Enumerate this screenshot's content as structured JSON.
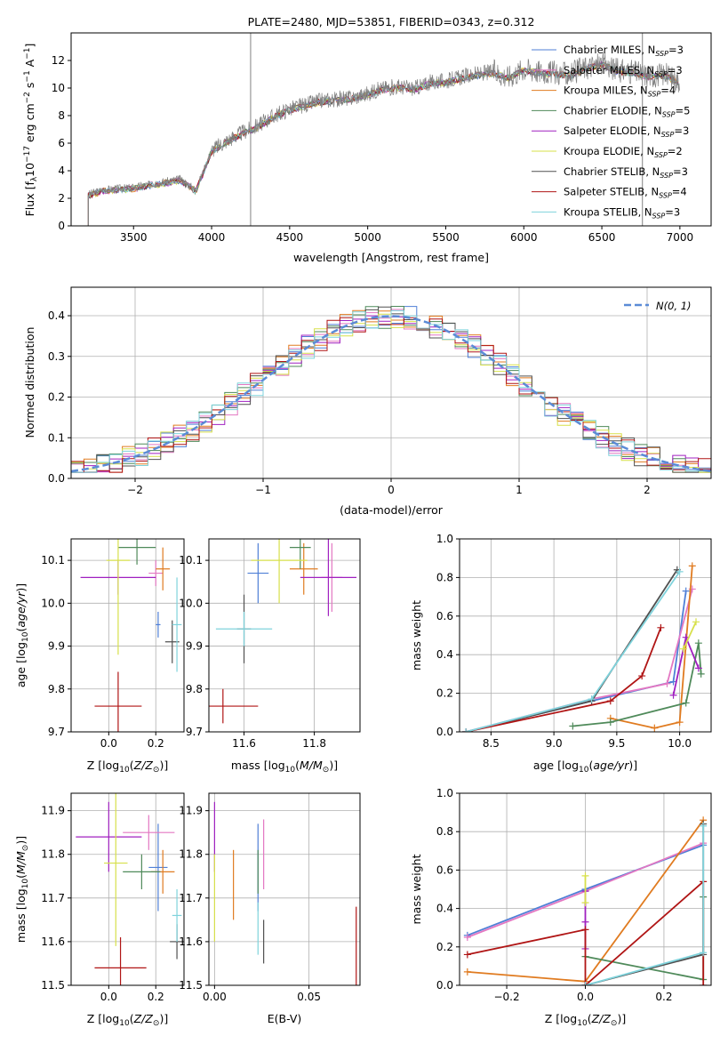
{
  "chart_data": [
    {
      "type": "line",
      "title": "PLATE=2480, MJD=53851, FIBERID=0343, z=0.312",
      "xlabel": "wavelength [Angstrom, rest frame]",
      "ylabel": "Flux [f",
      "xlim": [
        3100,
        7200
      ],
      "ylim": [
        0,
        14
      ],
      "xticks": [
        "3500",
        "4000",
        "4500",
        "5000",
        "5500",
        "6000",
        "6500",
        "7000"
      ],
      "yticks": [
        "0",
        "2",
        "4",
        "6",
        "8",
        "10",
        "12"
      ],
      "legend": [
        {
          "name": "Chabrier MILES",
          "nssp": "3",
          "color": "#4f7fd6"
        },
        {
          "name": "Salpeter MILES",
          "nssp": "3",
          "color": "#e377c2"
        },
        {
          "name": "Kroupa MILES",
          "nssp": "4",
          "color": "#e07b20"
        },
        {
          "name": "Chabrier ELODIE",
          "nssp": "5",
          "color": "#4f8a5a"
        },
        {
          "name": "Salpeter ELODIE",
          "nssp": "3",
          "color": "#a020c0"
        },
        {
          "name": "Kroupa ELODIE",
          "nssp": "2",
          "color": "#d7e04a"
        },
        {
          "name": "Chabrier STELIB",
          "nssp": "3",
          "color": "#505050"
        },
        {
          "name": "Salpeter STELIB",
          "nssp": "4",
          "color": "#b01515"
        },
        {
          "name": "Kroupa STELIB",
          "nssp": "3",
          "color": "#7fd3dc"
        }
      ],
      "data_series": {
        "name": "data",
        "color": "#808080",
        "x": [
          3210,
          3300,
          3400,
          3500,
          3600,
          3700,
          3800,
          3900,
          4000,
          4100,
          4200,
          4300,
          4400,
          4500,
          4600,
          4700,
          4800,
          4900,
          5000,
          5100,
          5200,
          5300,
          5400,
          5500,
          5600,
          5700,
          5800,
          5900,
          6000,
          6100,
          6200,
          6300,
          6400,
          6500,
          6600,
          6700,
          6800,
          6900,
          7000
        ],
        "y": [
          2.3,
          2.6,
          2.7,
          2.8,
          3.0,
          3.2,
          3.4,
          2.6,
          5.5,
          6.2,
          6.8,
          7.3,
          8.0,
          8.5,
          8.8,
          9.1,
          9.2,
          9.3,
          9.6,
          10.0,
          10.1,
          10.0,
          10.4,
          10.5,
          10.8,
          11.0,
          11.2,
          10.8,
          11.4,
          11.2,
          11.1,
          11.0,
          11.5,
          11.8,
          11.3,
          11.2,
          10.9,
          11.0,
          10.5
        ]
      }
    },
    {
      "type": "histogram",
      "xlabel": "(data-model)/error",
      "ylabel": "Normed distribution",
      "xlim": [
        -2.5,
        2.5
      ],
      "ylim": [
        0,
        0.47
      ],
      "xticks": [
        "−2",
        "−1",
        "0",
        "1",
        "2"
      ],
      "yticks": [
        "0.0",
        "0.1",
        "0.2",
        "0.3",
        "0.4"
      ],
      "legend": "N(0, 1)",
      "gaussian": {
        "mean": 0,
        "sigma": 1,
        "color": "#5b8bd6"
      },
      "bin_width": 0.1
    },
    {
      "type": "scatter",
      "xlabel": "Z [log",
      "ylabel": "age  [log",
      "xlim": [
        -0.16,
        0.32
      ],
      "ylim": [
        9.7,
        10.15
      ],
      "xticks": [
        "0.0",
        "0.2"
      ],
      "yticks": [
        "9.7",
        "9.8",
        "9.9",
        "10.0",
        "10.1"
      ],
      "points": [
        {
          "series": "Chabrier MILES",
          "x": 0.21,
          "xerr": 0.01,
          "y": 9.95,
          "yerr": 0.03
        },
        {
          "series": "Salpeter MILES",
          "x": 0.2,
          "xerr": 0.03,
          "y": 10.07,
          "yerr": 0.03
        },
        {
          "series": "Kroupa MILES",
          "x": 0.23,
          "xerr": 0.03,
          "y": 10.08,
          "yerr": 0.05
        },
        {
          "series": "Chabrier ELODIE",
          "x": 0.12,
          "xerr": 0.08,
          "y": 10.13,
          "yerr": 0.04
        },
        {
          "series": "Salpeter ELODIE",
          "x": 0.04,
          "xerr": 0.16,
          "y": 10.06,
          "yerr": 0.04
        },
        {
          "series": "Kroupa ELODIE",
          "x": 0.04,
          "xerr": 0.05,
          "y": 10.1,
          "yerr": 0.22
        },
        {
          "series": "Chabrier STELIB",
          "x": 0.27,
          "xerr": 0.03,
          "y": 9.91,
          "yerr": 0.05
        },
        {
          "series": "Salpeter STELIB",
          "x": 0.04,
          "xerr": 0.1,
          "y": 9.76,
          "yerr": 0.08
        },
        {
          "series": "Kroupa STELIB",
          "x": 0.29,
          "xerr": 0.02,
          "y": 9.95,
          "yerr": 0.11
        }
      ]
    },
    {
      "type": "scatter",
      "xlabel": "mass [log",
      "ylabel": "",
      "xlim": [
        11.5,
        11.93
      ],
      "ylim": [
        9.7,
        10.15
      ],
      "xticks": [
        "11.6",
        "11.8"
      ],
      "yticks": [
        "9.7",
        "9.8",
        "9.9",
        "10.0",
        "10.1"
      ],
      "points": [
        {
          "series": "Chabrier MILES",
          "x": 11.64,
          "xerr": 0.03,
          "y": 10.07,
          "yerr": 0.07
        },
        {
          "series": "Salpeter MILES",
          "x": 11.85,
          "xerr": 0.03,
          "y": 10.06,
          "yerr": 0.08
        },
        {
          "series": "Kroupa MILES",
          "x": 11.77,
          "xerr": 0.04,
          "y": 10.08,
          "yerr": 0.06
        },
        {
          "series": "Chabrier ELODIE",
          "x": 11.76,
          "xerr": 0.03,
          "y": 10.13,
          "yerr": 0.05
        },
        {
          "series": "Salpeter ELODIE",
          "x": 11.84,
          "xerr": 0.08,
          "y": 10.06,
          "yerr": 0.09
        },
        {
          "series": "Kroupa ELODIE",
          "x": 11.7,
          "xerr": 0.08,
          "y": 10.1,
          "yerr": 0.1
        },
        {
          "series": "Chabrier STELIB",
          "x": 11.6,
          "xerr": 0.02,
          "y": 9.94,
          "yerr": 0.08
        },
        {
          "series": "Salpeter STELIB",
          "x": 11.54,
          "xerr": 0.1,
          "y": 9.76,
          "yerr": 0.04
        },
        {
          "series": "Kroupa STELIB",
          "x": 11.6,
          "xerr": 0.08,
          "y": 9.94,
          "yerr": 0.04
        }
      ]
    },
    {
      "type": "line",
      "xlabel": "age  [log",
      "ylabel": "mass weight",
      "xlim": [
        8.25,
        10.25
      ],
      "ylim": [
        0,
        1
      ],
      "xticks": [
        "8.5",
        "9.0",
        "9.5",
        "10.0"
      ],
      "yticks": [
        "0.0",
        "0.2",
        "0.4",
        "0.6",
        "0.8",
        "1.0"
      ],
      "series": [
        {
          "name": "Chabrier MILES",
          "color": "#4f7fd6",
          "x": [
            8.3,
            9.3,
            9.95,
            10.05
          ],
          "y": [
            0.0,
            0.16,
            0.26,
            0.73
          ]
        },
        {
          "name": "Salpeter MILES",
          "color": "#e377c2",
          "x": [
            8.3,
            9.3,
            9.9,
            10.1
          ],
          "y": [
            0.0,
            0.17,
            0.25,
            0.74
          ]
        },
        {
          "name": "Kroupa MILES",
          "color": "#e07b20",
          "x": [
            9.45,
            9.8,
            10.0,
            10.1
          ],
          "y": [
            0.07,
            0.02,
            0.05,
            0.86
          ]
        },
        {
          "name": "Chabrier ELODIE",
          "color": "#4f8a5a",
          "x": [
            9.15,
            9.45,
            10.05,
            10.15,
            10.17
          ],
          "y": [
            0.03,
            0.05,
            0.15,
            0.46,
            0.3
          ]
        },
        {
          "name": "Salpeter ELODIE",
          "color": "#a020c0",
          "x": [
            9.95,
            10.05,
            10.15
          ],
          "y": [
            0.19,
            0.49,
            0.33
          ]
        },
        {
          "name": "Kroupa ELODIE",
          "color": "#d7e04a",
          "x": [
            10.03,
            10.13
          ],
          "y": [
            0.43,
            0.57
          ]
        },
        {
          "name": "Chabrier STELIB",
          "color": "#505050",
          "x": [
            8.3,
            9.3,
            9.98
          ],
          "y": [
            0.0,
            0.16,
            0.84
          ]
        },
        {
          "name": "Salpeter STELIB",
          "color": "#b01515",
          "x": [
            8.3,
            9.45,
            9.7,
            9.85
          ],
          "y": [
            0.0,
            0.16,
            0.29,
            0.54
          ]
        },
        {
          "name": "Kroupa STELIB",
          "color": "#7fd3dc",
          "x": [
            8.3,
            9.3,
            10.0
          ],
          "y": [
            0.0,
            0.17,
            0.83
          ]
        }
      ]
    },
    {
      "type": "scatter",
      "xlabel": "Z [log",
      "ylabel": "mass [log",
      "xlim": [
        -0.16,
        0.32
      ],
      "ylim": [
        11.5,
        11.94
      ],
      "xticks": [
        "0.0",
        "0.2"
      ],
      "yticks": [
        "11.5",
        "11.6",
        "11.7",
        "11.8",
        "11.9"
      ],
      "points": [
        {
          "series": "Chabrier MILES",
          "x": 0.21,
          "xerr": 0.04,
          "y": 11.77,
          "yerr": 0.1
        },
        {
          "series": "Salpeter MILES",
          "x": 0.17,
          "xerr": 0.11,
          "y": 11.85,
          "yerr": 0.04
        },
        {
          "series": "Kroupa MILES",
          "x": 0.23,
          "xerr": 0.05,
          "y": 11.76,
          "yerr": 0.05
        },
        {
          "series": "Chabrier ELODIE",
          "x": 0.14,
          "xerr": 0.08,
          "y": 11.76,
          "yerr": 0.04
        },
        {
          "series": "Salpeter ELODIE",
          "x": 0.0,
          "xerr": 0.14,
          "y": 11.84,
          "yerr": 0.08
        },
        {
          "series": "Kroupa ELODIE",
          "x": 0.03,
          "xerr": 0.05,
          "y": 11.78,
          "yerr": 0.19
        },
        {
          "series": "Chabrier STELIB",
          "x": 0.29,
          "xerr": 0.03,
          "y": 11.6,
          "yerr": 0.04
        },
        {
          "series": "Salpeter STELIB",
          "x": 0.05,
          "xerr": 0.11,
          "y": 11.54,
          "yerr": 0.07
        },
        {
          "series": "Kroupa STELIB",
          "x": 0.29,
          "xerr": 0.02,
          "y": 11.66,
          "yerr": 0.06
        }
      ]
    },
    {
      "type": "scatter",
      "xlabel": "E(B-V)",
      "ylabel": "",
      "xlim": [
        -0.003,
        0.077
      ],
      "ylim": [
        11.5,
        11.94
      ],
      "xticks": [
        "0.00",
        "0.05"
      ],
      "yticks": [
        "11.5",
        "11.6",
        "11.7",
        "11.8",
        "11.9"
      ],
      "points": [
        {
          "series": "Chabrier MILES",
          "x": 0.023,
          "xerr": 0,
          "y": 11.77,
          "yerr": 0.1
        },
        {
          "series": "Salpeter MILES",
          "x": 0.026,
          "xerr": 0,
          "y": 11.8,
          "yerr": 0.08
        },
        {
          "series": "Kroupa MILES",
          "x": 0.01,
          "xerr": 0,
          "y": 11.73,
          "yerr": 0.08
        },
        {
          "series": "Chabrier ELODIE",
          "x": 0.023,
          "xerr": 0,
          "y": 11.76,
          "yerr": 0.05
        },
        {
          "series": "Salpeter ELODIE",
          "x": 0.0,
          "xerr": 0,
          "y": 11.84,
          "yerr": 0.08
        },
        {
          "series": "Kroupa ELODIE",
          "x": 0.0,
          "xerr": 0,
          "y": 11.7,
          "yerr": 0.1
        },
        {
          "series": "Chabrier STELIB",
          "x": 0.026,
          "xerr": 0,
          "y": 11.6,
          "yerr": 0.05
        },
        {
          "series": "Salpeter STELIB",
          "x": 0.075,
          "xerr": 0,
          "y": 11.58,
          "yerr": 0.1
        },
        {
          "series": "Kroupa STELIB",
          "x": 0.023,
          "xerr": 0,
          "y": 11.63,
          "yerr": 0.06
        }
      ]
    },
    {
      "type": "line",
      "xlabel": "Z [log",
      "ylabel": "mass weight",
      "xlim": [
        -0.32,
        0.32
      ],
      "ylim": [
        0,
        1
      ],
      "xticks": [
        "−0.2",
        "0.0",
        "0.2"
      ],
      "yticks": [
        "0.0",
        "0.2",
        "0.4",
        "0.6",
        "0.8",
        "1.0"
      ],
      "series": [
        {
          "name": "Chabrier MILES",
          "color": "#4f7fd6",
          "x": [
            -0.3,
            0.0,
            0.3
          ],
          "y": [
            0.26,
            0.5,
            0.73
          ]
        },
        {
          "name": "Salpeter MILES",
          "color": "#e377c2",
          "x": [
            -0.3,
            0.0,
            0.3
          ],
          "y": [
            0.25,
            0.49,
            0.74
          ]
        },
        {
          "name": "Kroupa MILES",
          "color": "#e07b20",
          "x": [
            -0.3,
            0.0,
            0.3
          ],
          "y": [
            0.07,
            0.02,
            0.86
          ]
        },
        {
          "name": "Chabrier ELODIE",
          "color": "#4f8a5a",
          "x": [
            0.0,
            0.3,
            0.3
          ],
          "y": [
            0.15,
            0.03,
            0.46
          ]
        },
        {
          "name": "Salpeter ELODIE",
          "color": "#a020c0",
          "x": [
            0.0,
            0.0,
            0.0
          ],
          "y": [
            0.19,
            0.49,
            0.33
          ]
        },
        {
          "name": "Kroupa ELODIE",
          "color": "#d7e04a",
          "x": [
            0.0,
            0.0
          ],
          "y": [
            0.43,
            0.57
          ]
        },
        {
          "name": "Chabrier STELIB",
          "color": "#505050",
          "x": [
            0.0,
            0.3,
            0.3
          ],
          "y": [
            0.0,
            0.16,
            0.84
          ]
        },
        {
          "name": "Salpeter STELIB",
          "color": "#b01515",
          "x": [
            -0.3,
            0.0,
            0.0,
            0.3,
            0.3
          ],
          "y": [
            0.16,
            0.29,
            0.0,
            0.54,
            0.0
          ]
        },
        {
          "name": "Kroupa STELIB",
          "color": "#7fd3dc",
          "x": [
            0.0,
            0.3,
            0.3
          ],
          "y": [
            0.0,
            0.17,
            0.83
          ]
        }
      ]
    }
  ]
}
